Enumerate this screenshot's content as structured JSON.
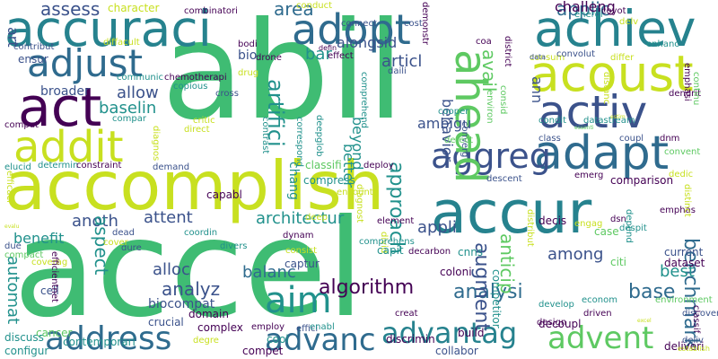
{
  "colors": {
    "c1": "#440154",
    "c2": "#3b528b",
    "c3": "#21918c",
    "c4": "#5ec962",
    "c5": "#c8e020",
    "c6": "#2f6b8e",
    "c7": "#26828e",
    "c8": "#3fbc73"
  },
  "words": [
    {
      "text": "accel"
    },
    {
      "text": "abil"
    },
    {
      "text": "accomplish"
    },
    {
      "text": "accuraci"
    },
    {
      "text": "accur"
    },
    {
      "text": "acoust"
    },
    {
      "text": "achiev"
    },
    {
      "text": "adapt"
    },
    {
      "text": "activ"
    },
    {
      "text": "act"
    },
    {
      "text": "addit"
    },
    {
      "text": "adopt"
    },
    {
      "text": "adjust"
    },
    {
      "text": "address"
    },
    {
      "text": "advanc"
    },
    {
      "text": "advantag"
    },
    {
      "text": "advent"
    },
    {
      "text": "aggreg"
    },
    {
      "text": "ahead"
    },
    {
      "text": "aim"
    },
    {
      "text": "algorithm"
    },
    {
      "text": "analysi"
    },
    {
      "text": "architectur"
    },
    {
      "text": "applic"
    },
    {
      "text": "assess"
    },
    {
      "text": "area"
    },
    {
      "text": "allow"
    },
    {
      "text": "baselin"
    },
    {
      "text": "attent"
    },
    {
      "text": "anoth"
    },
    {
      "text": "appli"
    },
    {
      "text": "analyz"
    },
    {
      "text": "alloc"
    },
    {
      "text": "balanc"
    },
    {
      "text": "augment"
    },
    {
      "text": "among"
    },
    {
      "text": "benchmark"
    },
    {
      "text": "base"
    },
    {
      "text": "best"
    },
    {
      "text": "ambigu"
    },
    {
      "text": "approach"
    },
    {
      "text": "artifici"
    },
    {
      "text": "aspect"
    },
    {
      "text": "automat"
    },
    {
      "text": "bio"
    },
    {
      "text": "bar"
    },
    {
      "text": "articl"
    },
    {
      "text": "alongsid"
    },
    {
      "text": "ann"
    },
    {
      "text": "avail"
    },
    {
      "text": "beyond"
    },
    {
      "text": "better"
    },
    {
      "text": "behavior"
    },
    {
      "text": "anticip"
    },
    {
      "text": "art"
    },
    {
      "text": "broader"
    },
    {
      "text": "benefit"
    },
    {
      "text": "biocompat"
    },
    {
      "text": "capabl"
    },
    {
      "text": "cell"
    },
    {
      "text": "character"
    },
    {
      "text": "combinatori"
    },
    {
      "text": "conduct"
    },
    {
      "text": "demonstr"
    },
    {
      "text": "challeng"
    },
    {
      "text": "coyot"
    },
    {
      "text": "contribut"
    },
    {
      "text": "diffacult"
    },
    {
      "text": "ensur"
    },
    {
      "text": "communic"
    },
    {
      "text": "chemotherapi"
    },
    {
      "text": "drone"
    },
    {
      "text": "drug"
    },
    {
      "text": "copious"
    },
    {
      "text": "cross"
    },
    {
      "text": "critic"
    },
    {
      "text": "direct"
    },
    {
      "text": "comput"
    },
    {
      "text": "compar"
    },
    {
      "text": "diagnos"
    },
    {
      "text": "contrast"
    },
    {
      "text": "correspond"
    },
    {
      "text": "deepglob"
    },
    {
      "text": "comprehend"
    },
    {
      "text": "elucid"
    },
    {
      "text": "determin"
    },
    {
      "text": "constraint"
    },
    {
      "text": "demand"
    },
    {
      "text": "efficaci"
    },
    {
      "text": "chang"
    },
    {
      "text": "classifi"
    },
    {
      "text": "deploy"
    },
    {
      "text": "compress"
    },
    {
      "text": "descent"
    },
    {
      "text": "comparison"
    },
    {
      "text": "emerg"
    },
    {
      "text": "decis"
    },
    {
      "text": "engag"
    },
    {
      "text": "dsn"
    },
    {
      "text": "element"
    },
    {
      "text": "deep"
    },
    {
      "text": "diagnost"
    },
    {
      "text": "encount"
    },
    {
      "text": "coordin"
    },
    {
      "text": "divers"
    },
    {
      "text": "dynam"
    },
    {
      "text": "divid"
    },
    {
      "text": "dure"
    },
    {
      "text": "dead"
    },
    {
      "text": "cover"
    },
    {
      "text": "compact"
    },
    {
      "text": "coverag"
    },
    {
      "text": "efficientnet"
    },
    {
      "text": "consist"
    },
    {
      "text": "comprehens"
    },
    {
      "text": "decarbon"
    },
    {
      "text": "capit"
    },
    {
      "text": "captur"
    },
    {
      "text": "coloni"
    },
    {
      "text": "cnns"
    },
    {
      "text": "case"
    },
    {
      "text": "despit"
    },
    {
      "text": "current"
    },
    {
      "text": "dataset"
    },
    {
      "text": "citi"
    },
    {
      "text": "discoveri"
    },
    {
      "text": "econom"
    },
    {
      "text": "environment"
    },
    {
      "text": "develop"
    },
    {
      "text": "design"
    },
    {
      "text": "driven"
    },
    {
      "text": "deliveri"
    },
    {
      "text": "deliv"
    },
    {
      "text": "classif"
    },
    {
      "text": "establish"
    },
    {
      "text": "build"
    },
    {
      "text": "collabor"
    },
    {
      "text": "competitor"
    },
    {
      "text": "discrimin"
    },
    {
      "text": "decoupl"
    },
    {
      "text": "creat"
    },
    {
      "text": "effici"
    },
    {
      "text": "employ"
    },
    {
      "text": "compet"
    },
    {
      "text": "domain"
    },
    {
      "text": "cool"
    },
    {
      "text": "enabl"
    },
    {
      "text": "complex"
    },
    {
      "text": "contemporari"
    },
    {
      "text": "degre"
    },
    {
      "text": "crucial"
    },
    {
      "text": "cancer"
    },
    {
      "text": "discuss"
    },
    {
      "text": "configur"
    },
    {
      "text": "due"
    },
    {
      "text": "evalu"
    },
    {
      "text": "connect"
    },
    {
      "text": "bodi"
    },
    {
      "text": "cost"
    },
    {
      "text": "defin"
    },
    {
      "text": "effect"
    },
    {
      "text": "daili"
    },
    {
      "text": "district"
    },
    {
      "text": "coa"
    },
    {
      "text": "environ"
    },
    {
      "text": "converg"
    },
    {
      "text": "consid"
    },
    {
      "text": "consum"
    },
    {
      "text": "data"
    },
    {
      "text": "convolut"
    },
    {
      "text": "differ"
    },
    {
      "text": "enhanc"
    },
    {
      "text": "emphasi"
    },
    {
      "text": "condit"
    },
    {
      "text": "datastream"
    },
    {
      "text": "cooper"
    },
    {
      "text": "detect"
    },
    {
      "text": "class"
    },
    {
      "text": "coupl"
    },
    {
      "text": "dnm"
    },
    {
      "text": "dendrit"
    },
    {
      "text": "continu"
    },
    {
      "text": "convent"
    },
    {
      "text": "dedic"
    },
    {
      "text": "emphas"
    },
    {
      "text": "distinct"
    },
    {
      "text": "distribut"
    },
    {
      "text": "depend"
    },
    {
      "text": "distanc"
    },
    {
      "text": "delv"
    },
    {
      "text": "energi"
    },
    {
      "text": "estim"
    },
    {
      "text": "essenti"
    },
    {
      "text": "excel"
    }
  ]
}
